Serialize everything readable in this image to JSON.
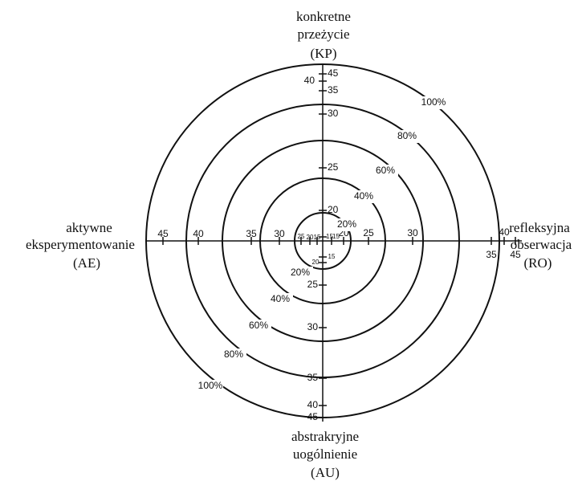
{
  "axes": {
    "top": {
      "lines": [
        "konkretne",
        "przeżycie",
        "(KP)"
      ],
      "ticks": [
        "45",
        "40",
        "35",
        "30",
        "25",
        "20",
        "15"
      ]
    },
    "right": {
      "lines": [
        "refleksyjna",
        "obserwacja",
        "(RO)"
      ],
      "ticks": [
        "15",
        "20",
        "25",
        "30",
        "35",
        "40",
        "45"
      ]
    },
    "bottom": {
      "lines": [
        "abstrakryjne",
        "uogólnienie",
        "(AU)"
      ],
      "ticks": [
        "15",
        "20",
        "25",
        "30",
        "35",
        "40",
        "45"
      ]
    },
    "left": {
      "lines": [
        "aktywne",
        "eksperymentowanie",
        "(AE)"
      ],
      "ticks": [
        "45",
        "40",
        "35",
        "30",
        "25",
        "20",
        "15"
      ]
    }
  },
  "rings": {
    "labels": [
      "20%",
      "40%",
      "60%",
      "80%",
      "100%"
    ]
  }
}
